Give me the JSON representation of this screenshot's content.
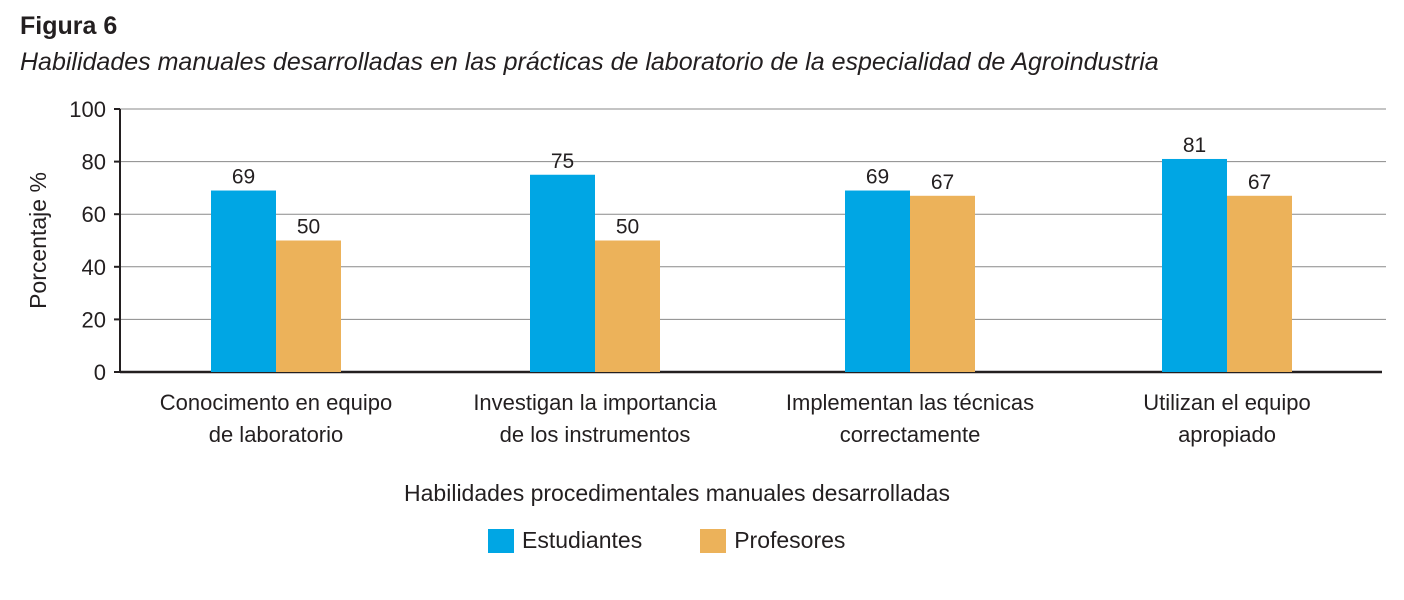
{
  "figure": {
    "label": "Figura 6",
    "title": "Habilidades manuales desarrolladas en las prácticas de laboratorio de la especialidad de Agroindustria"
  },
  "chart_data": {
    "type": "bar",
    "xlabel": "Habilidades procedimentales manuales desarrolladas",
    "ylabel": "Porcentaje %",
    "ylim": [
      0,
      100
    ],
    "yticks": [
      0,
      20,
      40,
      60,
      80,
      100
    ],
    "grid": true,
    "legend_position": "bottom",
    "categories": [
      [
        "Conocimento en equipo",
        "de laboratorio"
      ],
      [
        "Investigan la importancia",
        "de los instrumentos"
      ],
      [
        "Implementan las técnicas",
        "correctamente"
      ],
      [
        "Utilizan el equipo",
        "apropiado"
      ]
    ],
    "series": [
      {
        "name": "Estudiantes",
        "color": "#00a6e4",
        "values": [
          69,
          75,
          69,
          81
        ]
      },
      {
        "name": "Profesores",
        "color": "#ecb25a",
        "values": [
          50,
          50,
          67,
          67
        ]
      }
    ]
  }
}
